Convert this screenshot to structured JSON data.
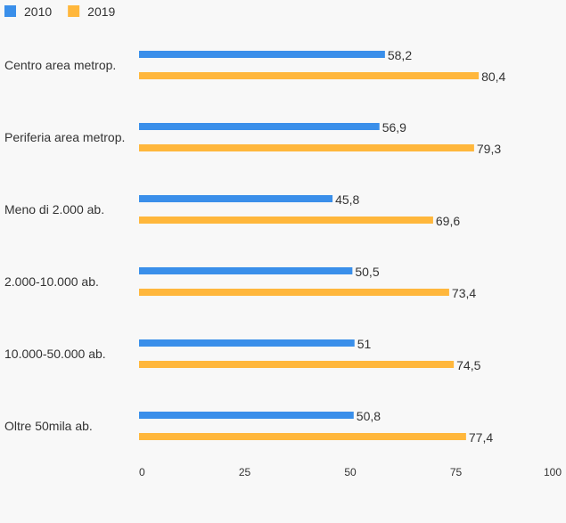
{
  "chart_data": {
    "type": "bar",
    "orientation": "horizontal",
    "title": "",
    "xlabel": "",
    "ylabel": "",
    "xlim": [
      0,
      100
    ],
    "x_ticks": [
      0,
      25,
      50,
      75,
      100
    ],
    "grid": false,
    "legend_position": "top-left",
    "categories": [
      "Centro area metrop.",
      "Periferia area metrop.",
      "Meno di 2.000 ab.",
      "2.000-10.000 ab.",
      "10.000-50.000 ab.",
      "Oltre 50mila ab."
    ],
    "series": [
      {
        "name": "2010",
        "color": "#3a8fea",
        "values": [
          58.2,
          56.9,
          45.8,
          50.5,
          51,
          50.8
        ],
        "labels": [
          "58,2",
          "56,9",
          "45,8",
          "50,5",
          "51",
          "50,8"
        ]
      },
      {
        "name": "2019",
        "color": "#ffb73c",
        "values": [
          80.4,
          79.3,
          69.6,
          73.4,
          74.5,
          77.4
        ],
        "labels": [
          "80,4",
          "79,3",
          "69,6",
          "73,4",
          "74,5",
          "77,4"
        ]
      }
    ]
  }
}
